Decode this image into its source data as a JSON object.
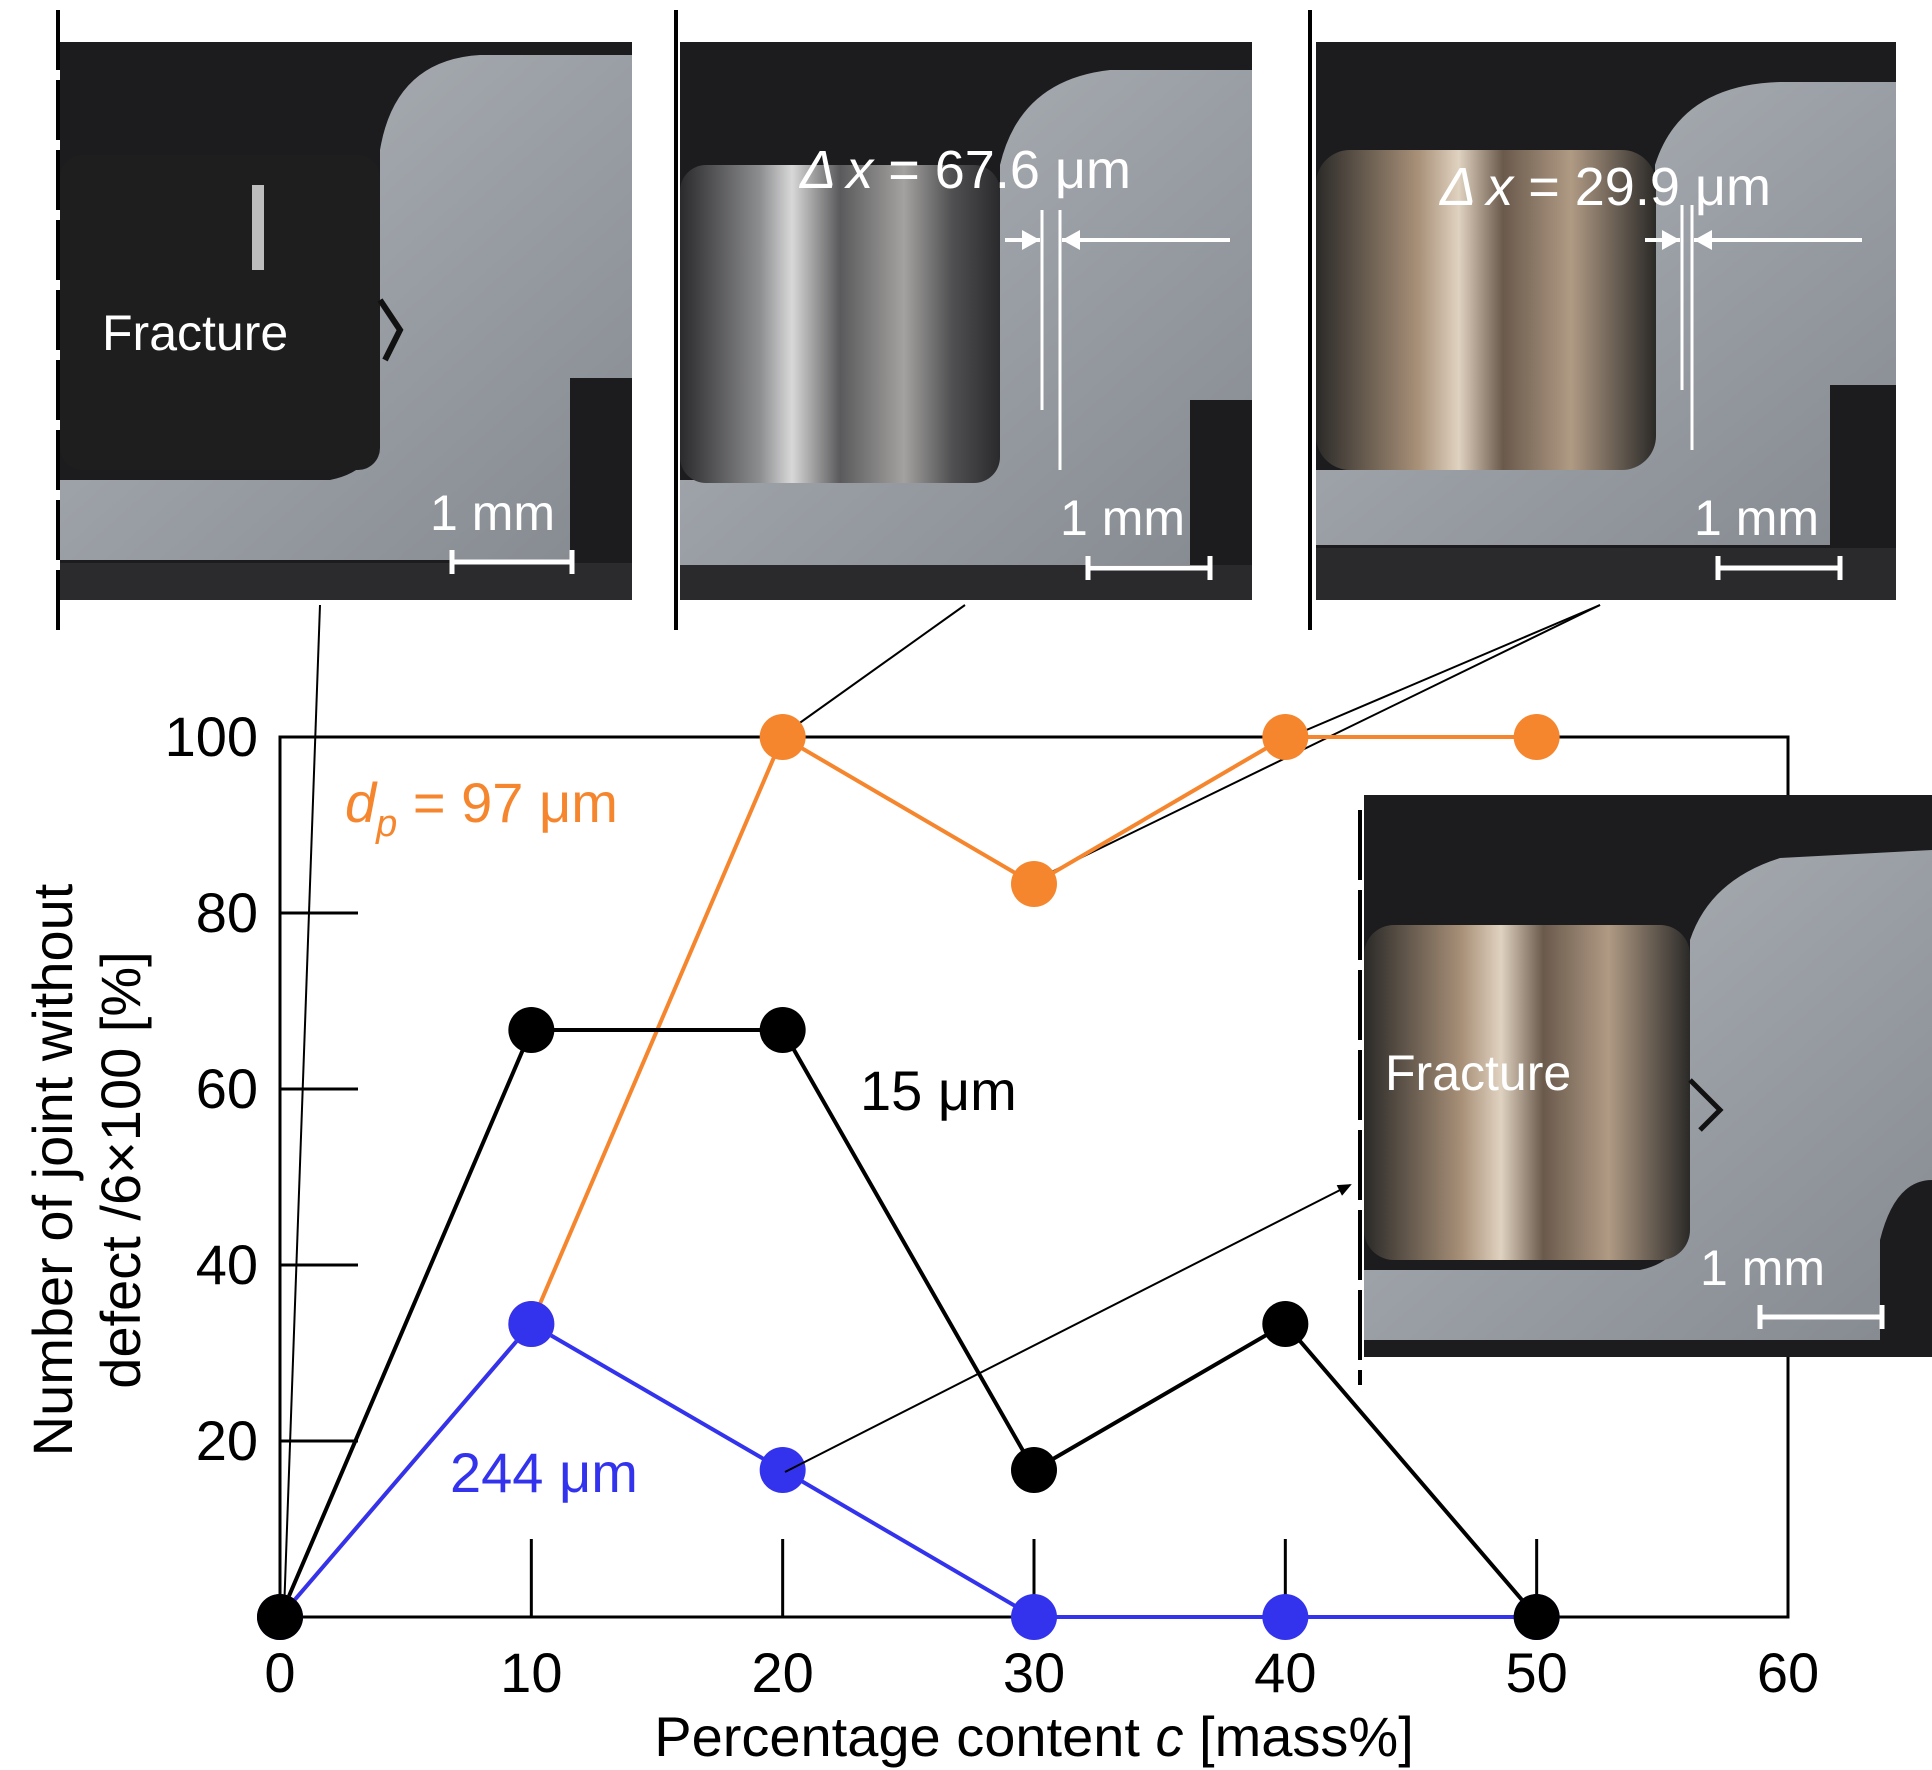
{
  "chart_data": {
    "type": "line",
    "x": [
      0,
      10,
      20,
      30,
      40,
      50
    ],
    "xlim": [
      0,
      60
    ],
    "ylim": [
      0,
      100
    ],
    "x_ticks": [
      "0",
      "10",
      "20",
      "30",
      "40",
      "50",
      "60"
    ],
    "y_ticks": [
      "20",
      "40",
      "60",
      "80",
      "100"
    ],
    "xlabel_parts": {
      "before": "Percentage content ",
      "var": "c",
      "after": " [mass%]"
    },
    "ylabel_lines": [
      "Number of joint without",
      "defect /6×100 [%]"
    ],
    "grid": false,
    "series": [
      {
        "name": "97 μm",
        "label_prefix": "d",
        "label_sub": "p",
        "label_eq": " = 97 μm",
        "color": "#f5862e",
        "values": [
          0,
          33.3,
          100,
          83.3,
          100,
          100
        ]
      },
      {
        "name": "15 μm",
        "color": "#000000",
        "values": [
          0,
          66.7,
          66.7,
          16.7,
          33.3,
          0
        ]
      },
      {
        "name": "244 μm",
        "color": "#3333ee",
        "values": [
          0,
          33.3,
          16.7,
          0,
          0,
          0
        ]
      }
    ]
  },
  "insets": [
    {
      "label": "Fracture",
      "scale": "1 mm",
      "dx": "",
      "target": "0 mass%"
    },
    {
      "label": "",
      "scale": "1 mm",
      "dx_symbol": "Δ",
      "dx_var": "x",
      "dx_value": " = 67.6 μm",
      "target": "20 mass%"
    },
    {
      "label": "",
      "scale": "1 mm",
      "dx_symbol": "Δ",
      "dx_var": "x",
      "dx_value": " = 29.9 μm",
      "target": "40 mass%"
    },
    {
      "label": "Fracture",
      "scale": "1 mm",
      "dx": "",
      "target": "20 mass%"
    }
  ],
  "colors": {
    "accent_orange": "#f5862e",
    "accent_blue": "#3333ee",
    "metal_gray": "#9a9ea4",
    "dark_bg": "#1c1c1e"
  }
}
